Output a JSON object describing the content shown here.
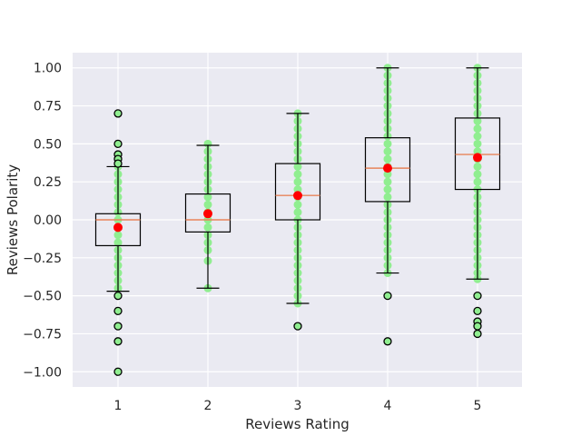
{
  "chart_data": {
    "type": "box",
    "xlabel": "Reviews Rating",
    "ylabel": "Reviews Polarity",
    "categories": [
      "1",
      "2",
      "3",
      "4",
      "5"
    ],
    "yticks": [
      -1.0,
      -0.75,
      -0.5,
      -0.25,
      0.0,
      0.25,
      0.5,
      0.75,
      1.0
    ],
    "ytick_labels": [
      "−1.00",
      "−0.75",
      "−0.50",
      "−0.25",
      "0.00",
      "0.25",
      "0.50",
      "0.75",
      "1.00"
    ],
    "ylim": [
      -1.1,
      1.1
    ],
    "grid": true,
    "colors": {
      "background": "#eaeaf2",
      "grid": "#ffffff",
      "box": "#000000",
      "median": "#e8845a",
      "mean": "#ff0000",
      "points": "#90ee90",
      "outlier_edge": "#000000"
    },
    "boxes": [
      {
        "category": "1",
        "q1": -0.17,
        "median": 0.0,
        "q3": 0.04,
        "whisker_low": -0.47,
        "whisker_high": 0.35,
        "mean": -0.05,
        "points": [
          -0.45,
          -0.4,
          -0.35,
          -0.3,
          -0.25,
          -0.2,
          -0.15,
          -0.1,
          -0.05,
          0.0,
          0.05,
          0.1,
          0.15,
          0.2,
          0.25,
          0.3,
          0.35
        ],
        "outliers": [
          0.7,
          0.5,
          0.43,
          0.4,
          0.37,
          -0.5,
          -0.6,
          -0.7,
          -0.8,
          -1.0
        ]
      },
      {
        "category": "2",
        "q1": -0.08,
        "median": 0.0,
        "q3": 0.17,
        "whisker_low": -0.45,
        "whisker_high": 0.49,
        "mean": 0.04,
        "points": [
          -0.45,
          -0.27,
          -0.2,
          -0.15,
          -0.1,
          -0.05,
          0.0,
          0.05,
          0.1,
          0.15,
          0.2,
          0.25,
          0.3,
          0.35,
          0.4,
          0.45,
          0.5
        ],
        "outliers": []
      },
      {
        "category": "3",
        "q1": 0.0,
        "median": 0.16,
        "q3": 0.37,
        "whisker_low": -0.55,
        "whisker_high": 0.7,
        "mean": 0.16,
        "points": [
          -0.55,
          -0.5,
          -0.45,
          -0.4,
          -0.35,
          -0.3,
          -0.25,
          -0.2,
          -0.15,
          -0.1,
          -0.05,
          0.0,
          0.05,
          0.1,
          0.15,
          0.2,
          0.25,
          0.3,
          0.35,
          0.4,
          0.45,
          0.5,
          0.55,
          0.6,
          0.65,
          0.7
        ],
        "outliers": [
          -0.7
        ]
      },
      {
        "category": "4",
        "q1": 0.12,
        "median": 0.34,
        "q3": 0.54,
        "whisker_low": -0.35,
        "whisker_high": 1.0,
        "mean": 0.34,
        "points": [
          -0.35,
          -0.3,
          -0.25,
          -0.2,
          -0.15,
          -0.1,
          -0.05,
          0.0,
          0.05,
          0.1,
          0.15,
          0.2,
          0.25,
          0.3,
          0.35,
          0.4,
          0.45,
          0.5,
          0.55,
          0.6,
          0.65,
          0.7,
          0.75,
          0.8,
          0.85,
          0.9,
          0.95,
          1.0
        ],
        "outliers": [
          -0.5,
          -0.8
        ]
      },
      {
        "category": "5",
        "q1": 0.2,
        "median": 0.43,
        "q3": 0.67,
        "whisker_low": -0.39,
        "whisker_high": 1.0,
        "mean": 0.41,
        "points": [
          -0.39,
          -0.35,
          -0.3,
          -0.25,
          -0.2,
          -0.15,
          -0.1,
          -0.05,
          0.0,
          0.05,
          0.1,
          0.15,
          0.2,
          0.25,
          0.3,
          0.35,
          0.4,
          0.45,
          0.5,
          0.55,
          0.6,
          0.65,
          0.7,
          0.75,
          0.8,
          0.85,
          0.9,
          0.95,
          1.0
        ],
        "outliers": [
          -0.5,
          -0.6,
          -0.67,
          -0.7,
          -0.75
        ]
      }
    ]
  }
}
